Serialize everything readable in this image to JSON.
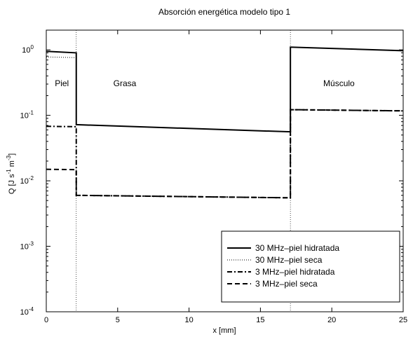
{
  "chart_data": {
    "type": "line",
    "title": "Absorción energética modelo tipo 1",
    "xlabel": "x [mm]",
    "ylabel": "Q [J s^-1 m^-3]",
    "ylabel_parts": {
      "base": "Q [J s",
      "exp1": "-1",
      "mid": " m",
      "exp2": "-3",
      "end": "]"
    },
    "xlim": [
      0,
      25
    ],
    "ylim": [
      0.0001,
      2
    ],
    "yscale": "log",
    "xticks": [
      0,
      5,
      10,
      15,
      20,
      25
    ],
    "xtick_labels": [
      "0",
      "5",
      "10",
      "15",
      "20",
      "25"
    ],
    "yticks": [
      0.0001,
      0.001,
      0.01,
      0.1,
      1
    ],
    "ytick_labels": [
      {
        "base": "10",
        "exp": "-4"
      },
      {
        "base": "10",
        "exp": "-3"
      },
      {
        "base": "10",
        "exp": "-2"
      },
      {
        "base": "10",
        "exp": "-1"
      },
      {
        "base": "10",
        "exp": "0"
      }
    ],
    "grid": false,
    "boundaries": [
      2.1,
      17.1
    ],
    "regions": [
      {
        "label": "Piel",
        "x": 0.6
      },
      {
        "label": "Grasa",
        "x": 5.5
      },
      {
        "label": "Músculo",
        "x": 20.5
      }
    ],
    "legend": {
      "position": "lower-right"
    },
    "series": [
      {
        "name": "30 MHz–piel hidratada",
        "style": "solid",
        "x": [
          0,
          2.1,
          2.1,
          17.1,
          17.1,
          25
        ],
        "y": [
          0.95,
          0.9,
          0.072,
          0.056,
          1.1,
          0.97
        ]
      },
      {
        "name": "30 MHz–piel seca",
        "style": "dotted",
        "x": [
          0,
          2.1,
          2.1,
          17.1,
          17.1,
          25
        ],
        "y": [
          0.78,
          0.76,
          0.072,
          0.056,
          1.1,
          0.97
        ]
      },
      {
        "name": "3 MHz–piel hidratada",
        "style": "dashdot",
        "x": [
          0,
          2.1,
          2.1,
          17.1,
          17.1,
          25
        ],
        "y": [
          0.068,
          0.067,
          0.006,
          0.0055,
          0.122,
          0.117
        ]
      },
      {
        "name": "3 MHz–piel seca",
        "style": "dashed",
        "x": [
          0,
          2.1,
          2.1,
          17.1,
          17.1,
          25
        ],
        "y": [
          0.015,
          0.0148,
          0.006,
          0.0055,
          0.122,
          0.117
        ]
      }
    ]
  }
}
